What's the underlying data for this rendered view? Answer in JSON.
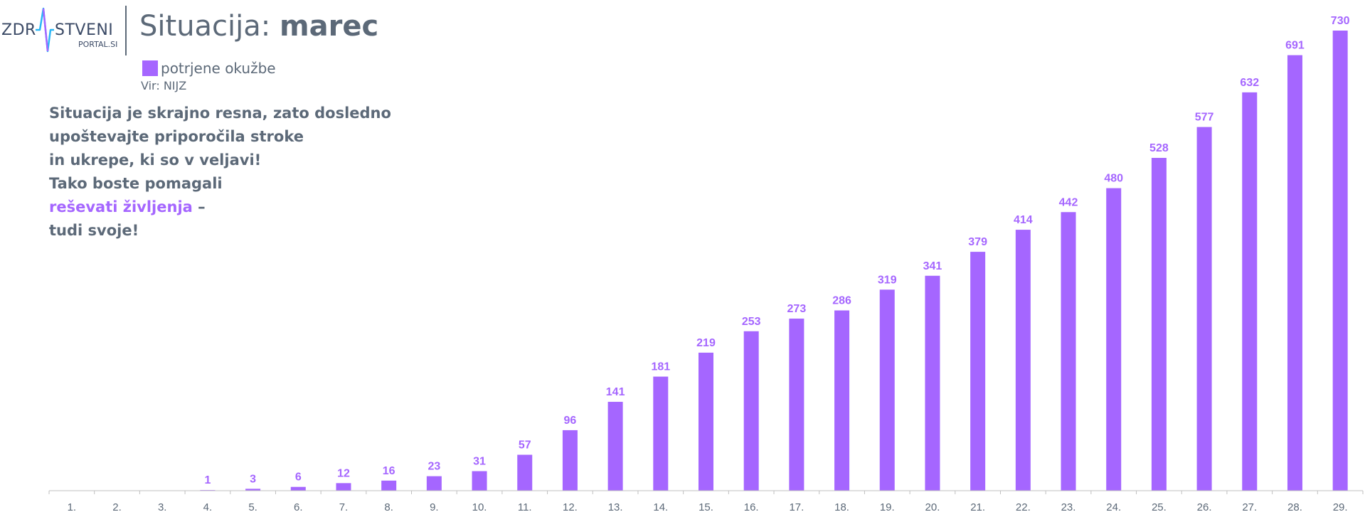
{
  "logo": {
    "left_text": "ZDR",
    "right_text": "STVENI",
    "sub_text": "PORTAL.SI"
  },
  "title": {
    "light": "Situacija: ",
    "bold": "marec"
  },
  "legend": {
    "label": "potrjene okužbe"
  },
  "source": "Vir: NIJZ",
  "message": {
    "line1": "Situacija je skrajno resna, zato dosledno",
    "line2": "upoštevajte priporočila stroke",
    "line3": "in ukrepe, ki so v veljavi!",
    "line4": "Tako boste pomagali",
    "line5_highlight": "reševati življenja",
    "line5_rest": " –",
    "line6": "tudi svoje!"
  },
  "colors": {
    "bar": "#a566ff",
    "label": "#a566ff",
    "text": "#5c6978",
    "axis": "#bfbfbf",
    "logo_accent_1": "#29b6f6",
    "logo_accent_2": "#a566ff"
  },
  "chart_data": {
    "type": "bar",
    "categories": [
      "1.",
      "2.",
      "3.",
      "4.",
      "5.",
      "6.",
      "7.",
      "8.",
      "9.",
      "10.",
      "11.",
      "12.",
      "13.",
      "14.",
      "15.",
      "16.",
      "17.",
      "18.",
      "19.",
      "20.",
      "21.",
      "22.",
      "23.",
      "24.",
      "25.",
      "26.",
      "27.",
      "28.",
      "29."
    ],
    "series": [
      {
        "name": "potrjene okužbe",
        "values": [
          0,
          0,
          0,
          1,
          3,
          6,
          12,
          16,
          23,
          31,
          57,
          96,
          141,
          181,
          219,
          253,
          273,
          286,
          319,
          341,
          379,
          414,
          442,
          480,
          528,
          577,
          632,
          691,
          730
        ]
      }
    ],
    "data_labels": [
      "",
      "",
      "",
      "1",
      "3",
      "6",
      "12",
      "16",
      "23",
      "31",
      "57",
      "96",
      "141",
      "181",
      "219",
      "253",
      "273",
      "286",
      "319",
      "341",
      "379",
      "414",
      "442",
      "480",
      "528",
      "577",
      "632",
      "691",
      "730"
    ],
    "title": "Situacija: marec",
    "xlabel": "",
    "ylabel": "",
    "ylim": [
      0,
      730
    ],
    "grid": false,
    "legend": "top-left"
  }
}
